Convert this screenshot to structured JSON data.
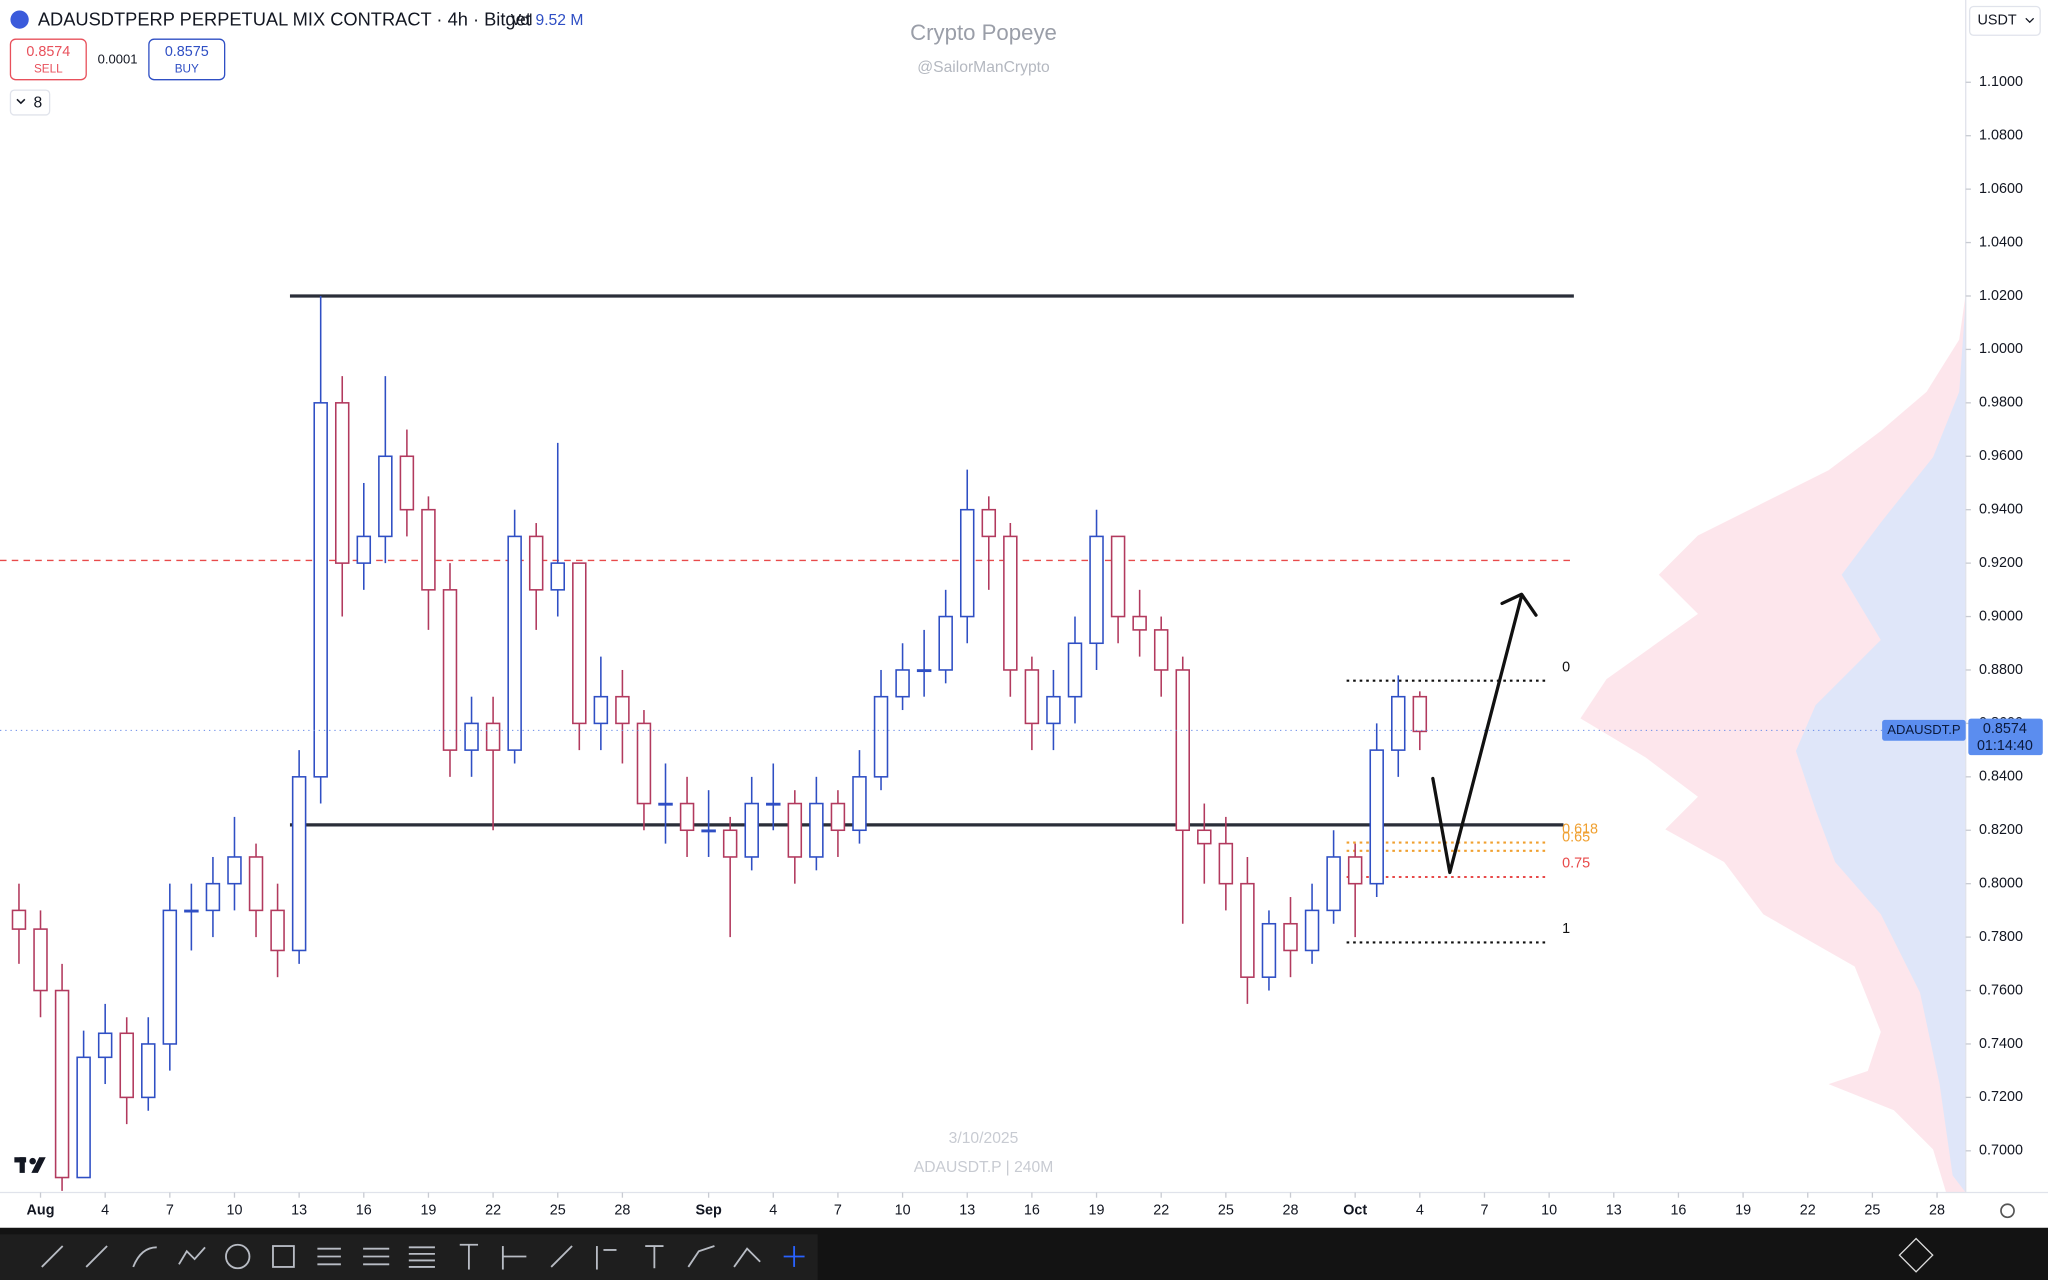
{
  "header": {
    "symbol": "ADAUSDTPERP PERPETUAL MIX CONTRACT · 4h · Bitget",
    "vol_label": "Vol",
    "vol_value": "9.52 M",
    "sell_price": "0.8574",
    "sell_label": "SELL",
    "spread": "0.0001",
    "buy_price": "0.8575",
    "buy_label": "BUY",
    "indicators": "8",
    "currency": "USDT"
  },
  "watermark": {
    "title": "Crypto Popeye",
    "handle": "@SailorManCrypto",
    "date": "3/10/2025",
    "symbol": "ADAUSDT.P | 240M"
  },
  "chart_data": {
    "type": "candlestick",
    "up_color": "#2f4fc4",
    "down_color": "#b23a5e",
    "x": [
      -1,
      0,
      1,
      2,
      3,
      4,
      5,
      6,
      7,
      8,
      9,
      10,
      11,
      12,
      13,
      14,
      15,
      16,
      17,
      18,
      19,
      20,
      21,
      22,
      23,
      24,
      25,
      26,
      27,
      28,
      29,
      30,
      31,
      32,
      33,
      34,
      35,
      36,
      37,
      38,
      39,
      40,
      41,
      42,
      43,
      44,
      45,
      46,
      47,
      48,
      49,
      50,
      51,
      52,
      53,
      54,
      55,
      56,
      57,
      58,
      59,
      60,
      61,
      62,
      63,
      64
    ],
    "open": [
      0.79,
      0.783,
      0.76,
      0.69,
      0.735,
      0.744,
      0.72,
      0.74,
      0.79,
      0.79,
      0.8,
      0.81,
      0.79,
      0.775,
      0.84,
      0.98,
      0.92,
      0.93,
      0.96,
      0.94,
      0.91,
      0.85,
      0.86,
      0.85,
      0.93,
      0.91,
      0.92,
      0.86,
      0.87,
      0.86,
      0.83,
      0.83,
      0.82,
      0.82,
      0.81,
      0.83,
      0.83,
      0.81,
      0.83,
      0.82,
      0.84,
      0.87,
      0.88,
      0.88,
      0.9,
      0.94,
      0.93,
      0.88,
      0.86,
      0.87,
      0.89,
      0.93,
      0.9,
      0.895,
      0.88,
      0.82,
      0.815,
      0.8,
      0.765,
      0.785,
      0.775,
      0.79,
      0.81,
      0.8,
      0.85,
      0.87
    ],
    "high": [
      0.8,
      0.79,
      0.77,
      0.745,
      0.755,
      0.75,
      0.75,
      0.8,
      0.8,
      0.81,
      0.825,
      0.815,
      0.8,
      0.85,
      1.02,
      0.99,
      0.95,
      0.99,
      0.97,
      0.945,
      0.92,
      0.87,
      0.87,
      0.94,
      0.935,
      0.965,
      0.92,
      0.885,
      0.88,
      0.865,
      0.845,
      0.84,
      0.835,
      0.825,
      0.84,
      0.845,
      0.835,
      0.84,
      0.835,
      0.85,
      0.88,
      0.89,
      0.895,
      0.91,
      0.955,
      0.945,
      0.935,
      0.885,
      0.88,
      0.9,
      0.94,
      0.93,
      0.91,
      0.9,
      0.885,
      0.83,
      0.825,
      0.81,
      0.79,
      0.795,
      0.8,
      0.82,
      0.815,
      0.86,
      0.878,
      0.872
    ],
    "low": [
      0.77,
      0.75,
      0.685,
      0.69,
      0.725,
      0.71,
      0.715,
      0.73,
      0.775,
      0.78,
      0.79,
      0.78,
      0.765,
      0.77,
      0.83,
      0.9,
      0.91,
      0.92,
      0.93,
      0.895,
      0.84,
      0.84,
      0.82,
      0.845,
      0.895,
      0.9,
      0.85,
      0.85,
      0.845,
      0.82,
      0.815,
      0.81,
      0.81,
      0.78,
      0.805,
      0.82,
      0.8,
      0.805,
      0.81,
      0.815,
      0.835,
      0.865,
      0.87,
      0.875,
      0.89,
      0.91,
      0.87,
      0.85,
      0.85,
      0.86,
      0.88,
      0.89,
      0.885,
      0.87,
      0.785,
      0.8,
      0.79,
      0.755,
      0.76,
      0.765,
      0.77,
      0.785,
      0.78,
      0.795,
      0.84,
      0.85
    ],
    "close": [
      0.783,
      0.76,
      0.69,
      0.735,
      0.744,
      0.72,
      0.74,
      0.79,
      0.79,
      0.8,
      0.81,
      0.79,
      0.775,
      0.84,
      0.98,
      0.92,
      0.93,
      0.96,
      0.94,
      0.91,
      0.85,
      0.86,
      0.85,
      0.93,
      0.91,
      0.92,
      0.86,
      0.87,
      0.86,
      0.83,
      0.83,
      0.82,
      0.82,
      0.81,
      0.83,
      0.83,
      0.81,
      0.83,
      0.82,
      0.84,
      0.87,
      0.88,
      0.88,
      0.9,
      0.94,
      0.93,
      0.88,
      0.86,
      0.87,
      0.89,
      0.93,
      0.9,
      0.895,
      0.88,
      0.82,
      0.815,
      0.8,
      0.765,
      0.785,
      0.775,
      0.79,
      0.81,
      0.8,
      0.85,
      0.87,
      0.857
    ],
    "xlim": [
      -1.88,
      89.33
    ],
    "ylim": [
      0.6844,
      1.1308
    ],
    "xticks": [
      {
        "value": 0,
        "label": "Aug"
      },
      {
        "value": 3,
        "label": "4"
      },
      {
        "value": 6,
        "label": "7"
      },
      {
        "value": 9,
        "label": "10"
      },
      {
        "value": 12,
        "label": "13"
      },
      {
        "value": 15,
        "label": "16"
      },
      {
        "value": 18,
        "label": "19"
      },
      {
        "value": 21,
        "label": "22"
      },
      {
        "value": 24,
        "label": "25"
      },
      {
        "value": 27,
        "label": "28"
      },
      {
        "value": 31,
        "label": "Sep"
      },
      {
        "value": 34,
        "label": "4"
      },
      {
        "value": 37,
        "label": "7"
      },
      {
        "value": 40,
        "label": "10"
      },
      {
        "value": 43,
        "label": "13"
      },
      {
        "value": 46,
        "label": "16"
      },
      {
        "value": 49,
        "label": "19"
      },
      {
        "value": 52,
        "label": "22"
      },
      {
        "value": 55,
        "label": "25"
      },
      {
        "value": 58,
        "label": "28"
      },
      {
        "value": 61,
        "label": "Oct"
      },
      {
        "value": 64,
        "label": "4"
      },
      {
        "value": 67,
        "label": "7"
      },
      {
        "value": 70,
        "label": "10"
      },
      {
        "value": 73,
        "label": "13"
      },
      {
        "value": 76,
        "label": "16"
      },
      {
        "value": 79,
        "label": "19"
      },
      {
        "value": 82,
        "label": "22"
      },
      {
        "value": 85,
        "label": "25"
      },
      {
        "value": 88,
        "label": "28"
      }
    ],
    "yticks": [
      {
        "value": 0.7,
        "label": "0.7000"
      },
      {
        "value": 0.72,
        "label": "0.7200"
      },
      {
        "value": 0.74,
        "label": "0.7400"
      },
      {
        "value": 0.76,
        "label": "0.7600"
      },
      {
        "value": 0.78,
        "label": "0.7800"
      },
      {
        "value": 0.8,
        "label": "0.8000"
      },
      {
        "value": 0.82,
        "label": "0.8200"
      },
      {
        "value": 0.84,
        "label": "0.8400"
      },
      {
        "value": 0.86,
        "label": "0.8600"
      },
      {
        "value": 0.88,
        "label": "0.8800"
      },
      {
        "value": 0.9,
        "label": "0.9000"
      },
      {
        "value": 0.92,
        "label": "0.9200"
      },
      {
        "value": 0.94,
        "label": "0.9400"
      },
      {
        "value": 0.96,
        "label": "0.9600"
      },
      {
        "value": 0.98,
        "label": "0.9800"
      },
      {
        "value": 1.0,
        "label": "1.0000"
      },
      {
        "value": 1.02,
        "label": "1.0200"
      },
      {
        "value": 1.04,
        "label": "1.0400"
      },
      {
        "value": 1.06,
        "label": "1.0600"
      },
      {
        "value": 1.08,
        "label": "1.0800"
      },
      {
        "value": 1.1,
        "label": "1.1000"
      }
    ],
    "levels": [
      {
        "value": 1.02,
        "color": "#2a2e39",
        "style": "solid"
      },
      {
        "value": 0.822,
        "color": "#2a2e39",
        "style": "solid"
      },
      {
        "value": 0.921,
        "color": "#e84a4a",
        "style": "dashed"
      }
    ],
    "fib_levels": [
      {
        "value": 0.876,
        "label": "0",
        "color": "#111111"
      },
      {
        "value": 0.8154,
        "label": "0.618",
        "color": "#f0a030"
      },
      {
        "value": 0.8123,
        "label": "0.65",
        "color": "#f0a030"
      },
      {
        "value": 0.8025,
        "label": "0.75",
        "color": "#e84a4a"
      },
      {
        "value": 0.778,
        "label": "1",
        "color": "#111111"
      }
    ],
    "last_price": {
      "symbol": "ADAUSDT.P",
      "value": 0.8574,
      "label": "0.8574",
      "countdown": "01:14:40"
    }
  }
}
